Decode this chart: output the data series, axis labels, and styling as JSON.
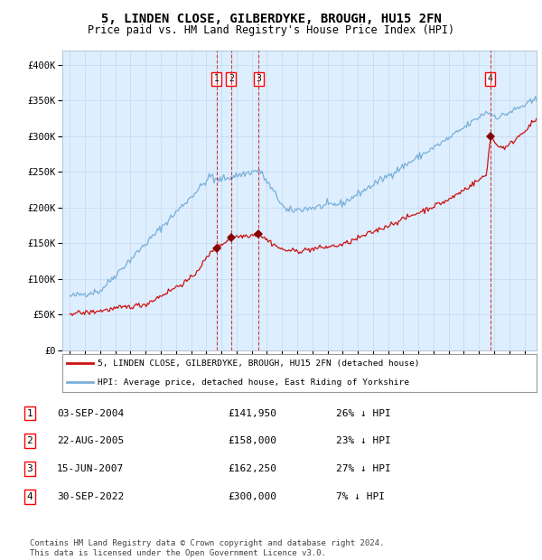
{
  "title": "5, LINDEN CLOSE, GILBERDYKE, BROUGH, HU15 2FN",
  "subtitle": "Price paid vs. HM Land Registry's House Price Index (HPI)",
  "title_fontsize": 10,
  "subtitle_fontsize": 8.5,
  "background_color": "#ddeeff",
  "ylabel": "",
  "ylim": [
    0,
    420000
  ],
  "yticks": [
    0,
    50000,
    100000,
    150000,
    200000,
    250000,
    300000,
    350000,
    400000
  ],
  "ytick_labels": [
    "£0",
    "£50K",
    "£100K",
    "£150K",
    "£200K",
    "£250K",
    "£300K",
    "£350K",
    "£400K"
  ],
  "xlim_start": 1994.5,
  "xlim_end": 2025.8,
  "grid_color": "#c5d8ec",
  "hpi_color": "#7ab0d8",
  "price_color": "#cc1111",
  "sale_marker_color": "#880000",
  "dashed_line_color": "#cc2222",
  "legend_label_price": "5, LINDEN CLOSE, GILBERDYKE, BROUGH, HU15 2FN (detached house)",
  "legend_label_hpi": "HPI: Average price, detached house, East Riding of Yorkshire",
  "sales": [
    {
      "num": 1,
      "date_label": "03-SEP-2004",
      "price": 141950,
      "price_label": "£141,950",
      "pct": "26% ↓ HPI",
      "year": 2004.67
    },
    {
      "num": 2,
      "date_label": "22-AUG-2005",
      "price": 158000,
      "price_label": "£158,000",
      "pct": "23% ↓ HPI",
      "year": 2005.64
    },
    {
      "num": 3,
      "date_label": "15-JUN-2007",
      "price": 162250,
      "price_label": "£162,250",
      "pct": "27% ↓ HPI",
      "year": 2007.45
    },
    {
      "num": 4,
      "date_label": "30-SEP-2022",
      "price": 300000,
      "price_label": "£300,000",
      "pct": "7% ↓ HPI",
      "year": 2022.75
    }
  ],
  "footer": "Contains HM Land Registry data © Crown copyright and database right 2024.\nThis data is licensed under the Open Government Licence v3.0.",
  "footer_fontsize": 6.5
}
